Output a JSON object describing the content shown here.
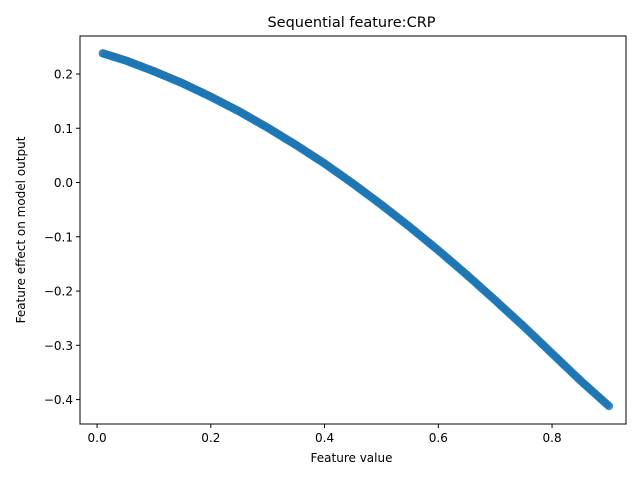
{
  "chart_data": {
    "type": "scatter",
    "title": "Sequential feature:CRP",
    "xlabel": "Feature value",
    "ylabel": "Feature effect on model output",
    "xlim": [
      -0.03,
      0.93
    ],
    "ylim": [
      -0.445,
      0.27
    ],
    "xticks": [
      0.0,
      0.2,
      0.4,
      0.6,
      0.8
    ],
    "xtick_labels": [
      "0.0",
      "0.2",
      "0.4",
      "0.6",
      "0.8"
    ],
    "yticks": [
      0.2,
      0.1,
      0.0,
      -0.1,
      -0.2,
      -0.3,
      -0.4
    ],
    "ytick_labels": [
      "0.2",
      "0.1",
      "0.0",
      "−0.1",
      "−0.2",
      "−0.3",
      "−0.4"
    ],
    "grid": false,
    "marker_color": "#1f77b4",
    "x_range": [
      0.01,
      0.9
    ],
    "series": [
      {
        "x": [
          0.01,
          0.05,
          0.1,
          0.15,
          0.2,
          0.25,
          0.3,
          0.35,
          0.4,
          0.45,
          0.5,
          0.55,
          0.6,
          0.65,
          0.7,
          0.75,
          0.8,
          0.85,
          0.9
        ],
        "values": [
          0.238,
          0.225,
          0.205,
          0.183,
          0.158,
          0.131,
          0.101,
          0.069,
          0.035,
          -0.002,
          -0.041,
          -0.082,
          -0.125,
          -0.17,
          -0.217,
          -0.265,
          -0.315,
          -0.365,
          -0.412
        ]
      }
    ]
  }
}
